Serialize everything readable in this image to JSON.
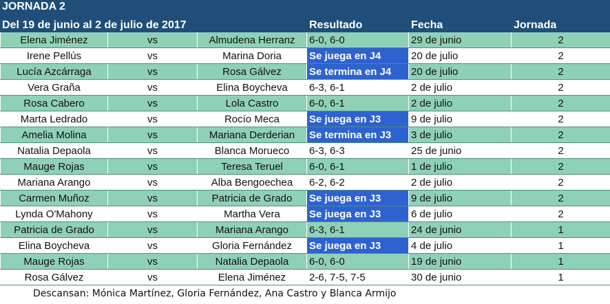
{
  "title": "JORNADA 2",
  "subtitle": "Del 19 de junio al 2 de julio de 2017",
  "headers": {
    "resultado": "Resultado",
    "fecha": "Fecha",
    "jornada": "Jornada"
  },
  "rows": [
    {
      "p1": "Elena Jiménez",
      "vs": "vs",
      "p2": "Almudena Herranz",
      "res": "6-0, 6-0",
      "fecha": "29 de junio",
      "jornada": "2",
      "hl": false
    },
    {
      "p1": "Irene Pellús",
      "vs": "vs",
      "p2": "Marina Doria",
      "res": "Se juega en J4",
      "fecha": "20 de julio",
      "jornada": "2",
      "hl": true
    },
    {
      "p1": "Lucía Azcárraga",
      "vs": "vs",
      "p2": "Rosa Gálvez",
      "res": "Se termina en J4",
      "fecha": "20 de julio",
      "jornada": "2",
      "hl": true
    },
    {
      "p1": "Vera Graña",
      "vs": "vs",
      "p2": "Elina Boycheva",
      "res": "6-3, 6-1",
      "fecha": "2 de julio",
      "jornada": "2",
      "hl": false
    },
    {
      "p1": "Rosa Cabero",
      "vs": "vs",
      "p2": "Lola Castro",
      "res": "6-0, 6-1",
      "fecha": "2 de julio",
      "jornada": "2",
      "hl": false
    },
    {
      "p1": "Marta Ledrado",
      "vs": "vs",
      "p2": "Rocío Meca",
      "res": "Se juega en J3",
      "fecha": "9 de julio",
      "jornada": "2",
      "hl": true
    },
    {
      "p1": "Amelia Molina",
      "vs": "vs",
      "p2": "Mariana Derderian",
      "res": "Se termina en J3",
      "fecha": "3 de julio",
      "jornada": "2",
      "hl": true
    },
    {
      "p1": "Natalia Depaola",
      "vs": "vs",
      "p2": "Blanca Morueco",
      "res": "6-3, 6-3",
      "fecha": "25 de junio",
      "jornada": "2",
      "hl": false
    },
    {
      "p1": "Mauge Rojas",
      "vs": "vs",
      "p2": "Teresa Teruel",
      "res": "6-0, 6-1",
      "fecha": "1 de julio",
      "jornada": "2",
      "hl": false
    },
    {
      "p1": "Mariana Arango",
      "vs": "vs",
      "p2": "Alba Bengoechea",
      "res": "6-2, 6-2",
      "fecha": "2 de julio",
      "jornada": "2",
      "hl": false
    },
    {
      "p1": "Carmen Muñoz",
      "vs": "vs",
      "p2": "Patricia de Grado",
      "res": "Se juega en J3",
      "fecha": "9 de julio",
      "jornada": "2",
      "hl": true
    },
    {
      "p1": "Lynda O'Mahony",
      "vs": "vs",
      "p2": "Martha Vera",
      "res": "Se juega en J3",
      "fecha": "6 de julio",
      "jornada": "2",
      "hl": true
    },
    {
      "p1": "Patricia de Grado",
      "vs": "vs",
      "p2": "Mariana Arango",
      "res": "6-3, 6-1",
      "fecha": "24 de junio",
      "jornada": "1",
      "hl": false
    },
    {
      "p1": "Elina Boycheva",
      "vs": "vs",
      "p2": "Gloria Fernández",
      "res": "Se juega en J3",
      "fecha": "4 de julio",
      "jornada": "1",
      "hl": true
    },
    {
      "p1": "Mauge Rojas",
      "vs": "vs",
      "p2": "Natalia Depaola",
      "res": "6-0, 6-0",
      "fecha": "19 de junio",
      "jornada": "1",
      "hl": false
    },
    {
      "p1": "Rosa Gálvez",
      "vs": "vs",
      "p2": "Elena Jiménez",
      "res": "2-6, 7-5, 7-5",
      "fecha": "30 de junio",
      "jornada": "1",
      "hl": false
    }
  ],
  "footer": "Descansan:  Mónica Martínez, Gloria Fernández, Ana Castro y Blanca Armijo",
  "colors": {
    "header_bg": "#1f4e79",
    "row_green": "#8fd1b8",
    "highlight": "#2e62d0"
  }
}
